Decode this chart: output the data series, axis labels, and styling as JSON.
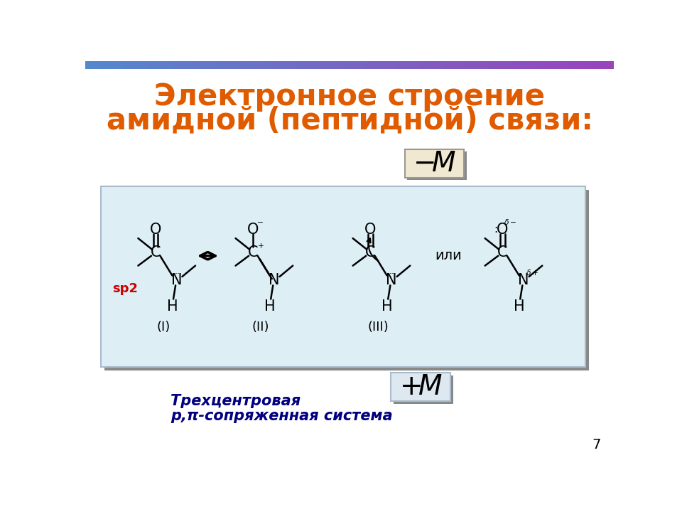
{
  "title_line1": "Электронное строение",
  "title_line2": "амидной (пептидной) связи:",
  "title_color": "#e05a00",
  "title_fontsize": 30,
  "bg_color": "#ffffff",
  "box_bg_color": "#ddeef5",
  "box_border_color": "#aabbcc",
  "shadow_color": "#888888",
  "minus_M_box_color": "#f0e8d0",
  "minus_M_box_border": "#cccccc",
  "plus_M_box_color": "#dde8f0",
  "plus_M_box_border": "#aabbcc",
  "sp2_color": "#cc0000",
  "sp2_text": "sp2",
  "label_I": "(I)",
  "label_II": "(II)",
  "label_III": "(III)",
  "ili_text": "или",
  "bottom_text_line1": "Трехцентровая",
  "bottom_text_line2": "р,π-сопряженная система",
  "bottom_text_color": "#000080",
  "page_number": "7"
}
